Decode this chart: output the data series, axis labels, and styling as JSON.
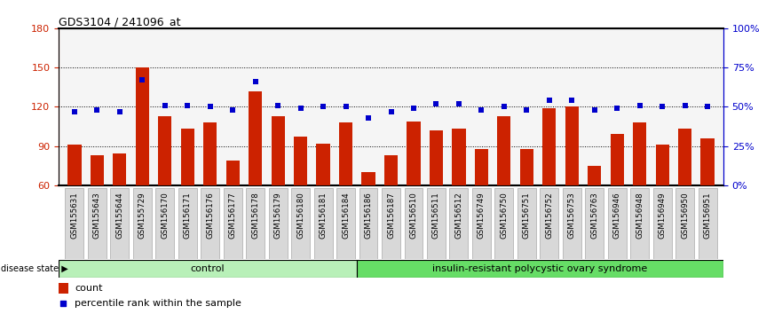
{
  "title": "GDS3104 / 241096_at",
  "samples": [
    "GSM155631",
    "GSM155643",
    "GSM155644",
    "GSM155729",
    "GSM156170",
    "GSM156171",
    "GSM156176",
    "GSM156177",
    "GSM156178",
    "GSM156179",
    "GSM156180",
    "GSM156181",
    "GSM156184",
    "GSM156186",
    "GSM156187",
    "GSM156510",
    "GSM156511",
    "GSM156512",
    "GSM156749",
    "GSM156750",
    "GSM156751",
    "GSM156752",
    "GSM156753",
    "GSM156763",
    "GSM156946",
    "GSM156948",
    "GSM156949",
    "GSM156950",
    "GSM156951"
  ],
  "counts": [
    91,
    83,
    84,
    150,
    113,
    103,
    108,
    79,
    132,
    113,
    97,
    92,
    108,
    70,
    83,
    109,
    102,
    103,
    88,
    113,
    88,
    119,
    120,
    75,
    99,
    108,
    91,
    103,
    96
  ],
  "percentiles": [
    47,
    48,
    47,
    67,
    51,
    51,
    50,
    48,
    66,
    51,
    49,
    50,
    50,
    43,
    47,
    49,
    52,
    52,
    48,
    50,
    48,
    54,
    54,
    48,
    49,
    51,
    50,
    51,
    50
  ],
  "control_count": 13,
  "group1_label": "control",
  "group2_label": "insulin-resistant polycystic ovary syndrome",
  "disease_state_label": "disease state",
  "bar_color": "#cc2200",
  "dot_color": "#0000cc",
  "ylim_left": [
    60,
    180
  ],
  "ylim_right": [
    0,
    100
  ],
  "yticks_left": [
    60,
    90,
    120,
    150,
    180
  ],
  "yticks_right": [
    0,
    25,
    50,
    75,
    100
  ],
  "ytick_labels_right": [
    "0%",
    "25%",
    "50%",
    "75%",
    "100%"
  ],
  "bg_color": "#f5f5f5",
  "legend_count_label": "count",
  "legend_pct_label": "percentile rank within the sample",
  "control_band_color": "#b8f0b8",
  "irpcos_band_color": "#66dd66"
}
